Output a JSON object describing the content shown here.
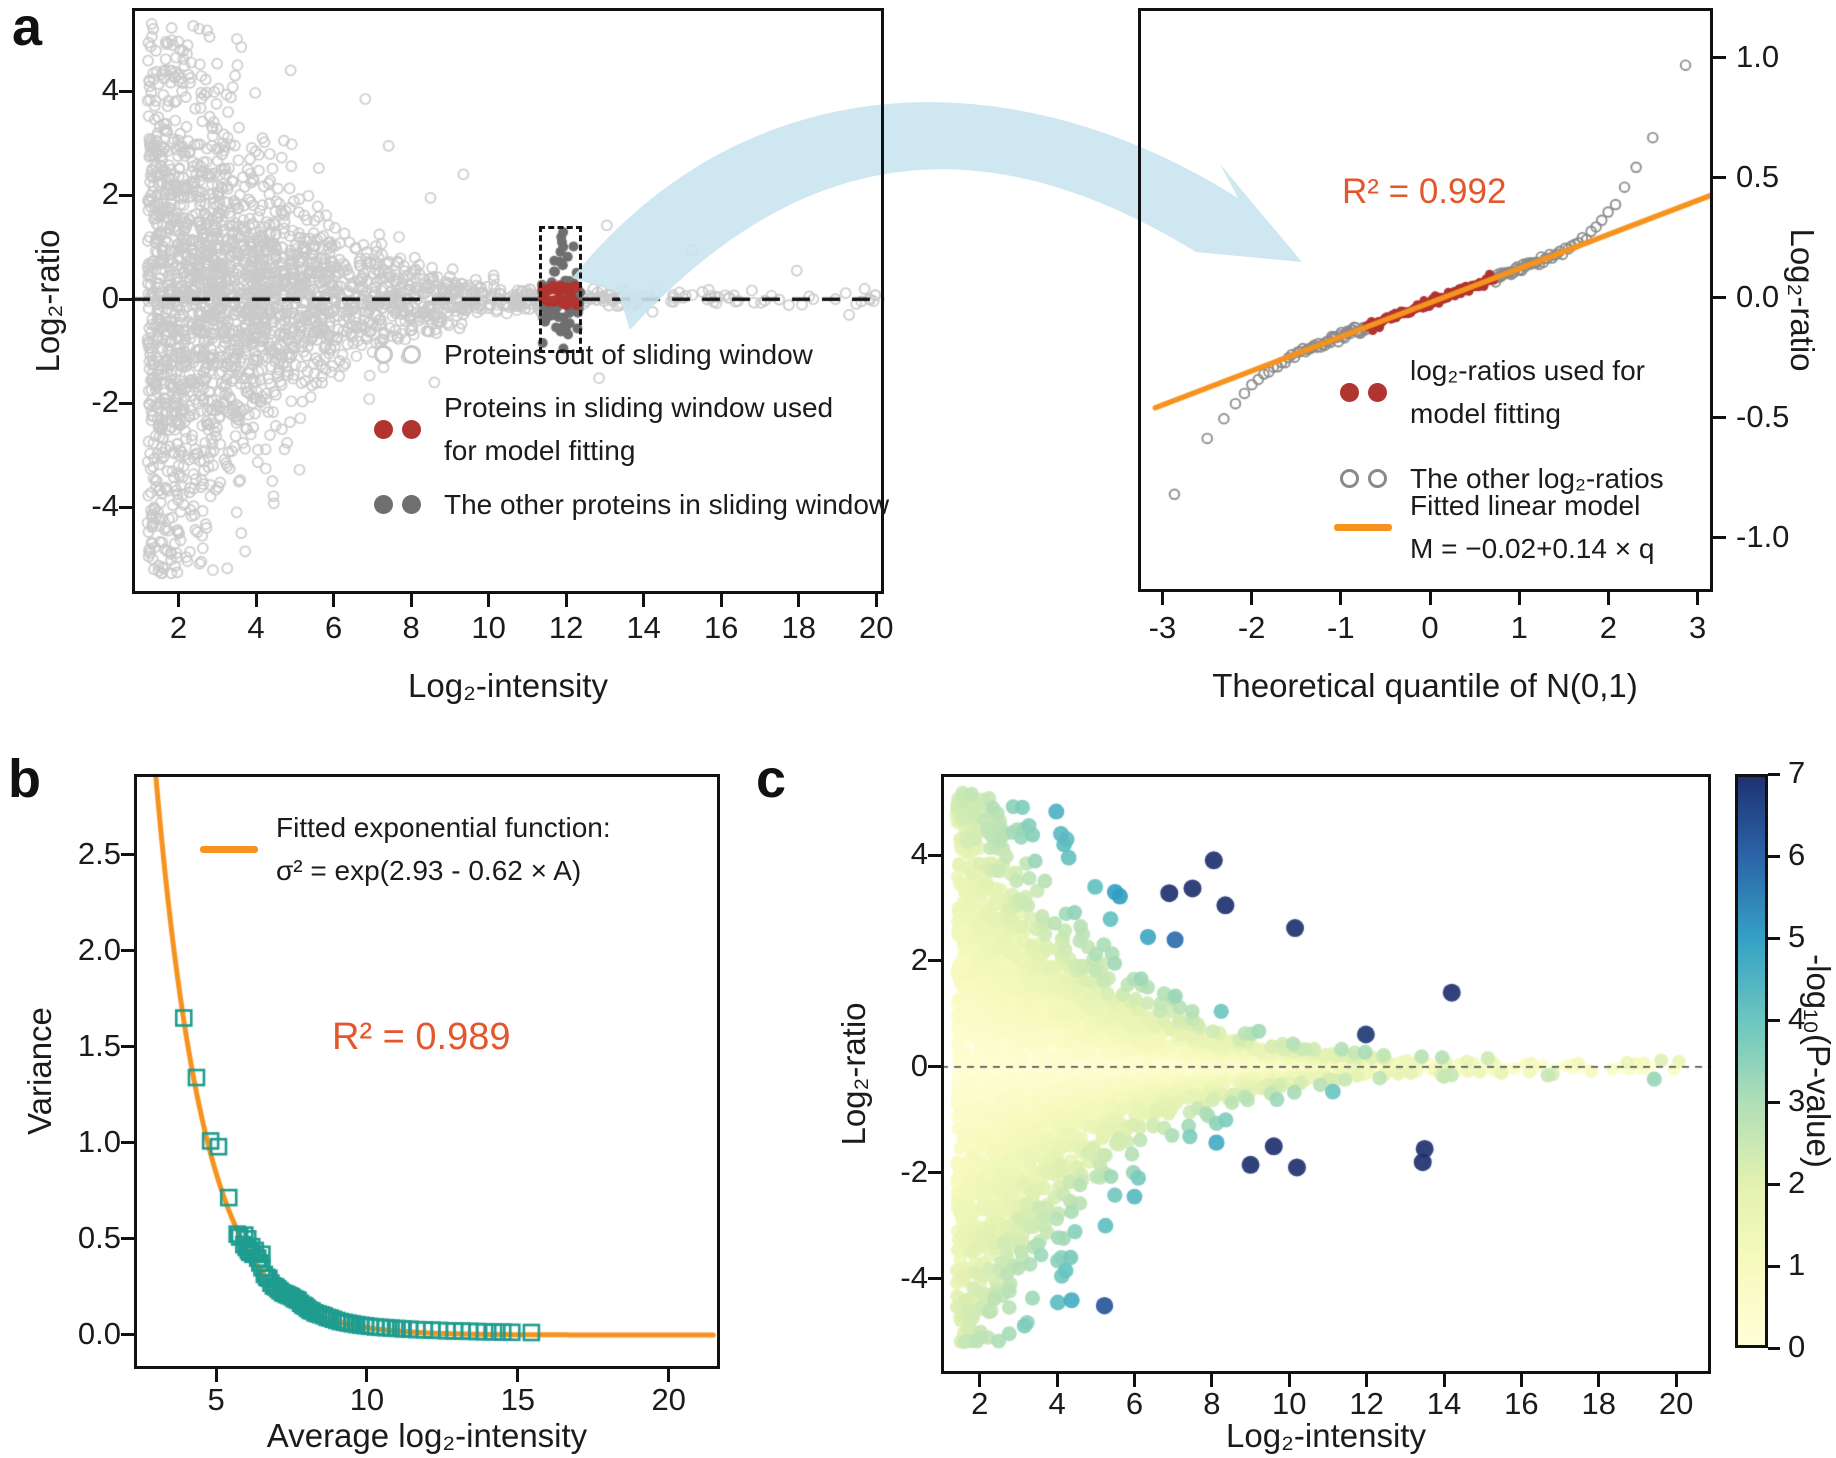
{
  "panel_labels": {
    "a": "a",
    "b": "b",
    "c": "c"
  },
  "colors": {
    "light_gray": "#c9c9c9",
    "qq_gray": "#8a8a8a",
    "window_gray": "#6f6f6f",
    "red": "#b0342f",
    "orange": "#f6921e",
    "r2_text": "#e2572b",
    "teal": "#1f9c8f",
    "arrow_blue": "#c9e4ef",
    "axis_black": "#111111",
    "zero_line_c": "#5a5a5a"
  },
  "chart_data": [
    {
      "id": "a_left",
      "type": "scatter",
      "panel": "a",
      "xlabel": "Log₂-intensity",
      "ylabel": "Log₂-ratio",
      "xlim": [
        0.8,
        20.2
      ],
      "ylim": [
        -5.67,
        5.6
      ],
      "xticks": [
        "2",
        "4",
        "6",
        "8",
        "10",
        "12",
        "14",
        "16",
        "18",
        "20"
      ],
      "xtick_values": [
        2,
        4,
        6,
        8,
        10,
        12,
        14,
        16,
        18,
        20
      ],
      "yticks": [
        "-4",
        "-2",
        "0",
        "2",
        "4"
      ],
      "ytick_values": [
        -4,
        -2,
        0,
        2,
        4
      ],
      "zero_line_y": 0,
      "grid": false,
      "sliding_window_box": {
        "x": [
          11.3,
          12.4
        ],
        "y": [
          -1.04,
          1.4
        ]
      },
      "noise_model": {
        "intercept": 2.93,
        "slope": -0.62
      },
      "series": [
        {
          "name": "out_of_window",
          "marker": "open-circle",
          "color": "#c9c9c9",
          "n": 2600,
          "seed": 101,
          "x_exp_mean": 3.3,
          "x_min": 1.2
        },
        {
          "name": "window_other",
          "marker": "circle",
          "color": "#6f6f6f",
          "n": 66,
          "seed": 202,
          "x_range": [
            11.34,
            12.37
          ],
          "y_sd": 0.42
        },
        {
          "name": "window_fit",
          "marker": "circle",
          "color": "#b0342f",
          "n": 22,
          "seed": 303,
          "x_range": [
            11.38,
            12.34
          ],
          "y_range": [
            -0.2,
            0.3
          ]
        }
      ],
      "feature_points": [
        [
          3.62,
          4.85
        ],
        [
          3.52,
          4.5
        ],
        [
          3.46,
          4.3
        ],
        [
          3.4,
          4.08
        ],
        [
          3.35,
          3.88
        ],
        [
          3.28,
          3.6
        ],
        [
          4.72,
          3.05
        ],
        [
          4.92,
          2.98
        ],
        [
          3.05,
          2.9
        ],
        [
          6.82,
          3.85
        ],
        [
          5.62,
          2.52
        ],
        [
          7.42,
          2.95
        ],
        [
          9.35,
          2.4
        ],
        [
          8.5,
          1.95
        ],
        [
          3.5,
          -4.1
        ],
        [
          3.62,
          -4.5
        ],
        [
          3.72,
          -4.85
        ],
        [
          4.42,
          -3.5
        ],
        [
          5.12,
          -3.28
        ],
        [
          4.05,
          -2.9
        ],
        [
          6.92,
          -1.92
        ],
        [
          8.6,
          -1.6
        ],
        [
          12.85,
          -1.52
        ],
        [
          13.05,
          1.42
        ],
        [
          15.25,
          0.95
        ],
        [
          17.95,
          0.55
        ],
        [
          19.3,
          -0.3
        ],
        [
          19.7,
          0.2
        ]
      ],
      "legend": [
        {
          "marker": "open-circle",
          "color": "#c9c9c9",
          "lines": [
            "Proteins out of sliding window"
          ]
        },
        {
          "marker": "circle",
          "color": "#b0342f",
          "lines": [
            "Proteins in sliding window used",
            "for model fitting"
          ]
        },
        {
          "marker": "circle",
          "color": "#6f6f6f",
          "lines": [
            "The other proteins in sliding window"
          ]
        }
      ]
    },
    {
      "id": "a_right",
      "type": "scatter",
      "panel": "a",
      "xlabel": "Theoretical quantile of N(0,1)",
      "ylabel": "Log₂-ratio",
      "xlim": [
        -3.274,
        3.173
      ],
      "ylim": [
        -1.225,
        1.208
      ],
      "xticks": [
        "-3",
        "-2",
        "-1",
        "0",
        "1",
        "2",
        "3"
      ],
      "xtick_values": [
        -3,
        -2,
        -1,
        0,
        1,
        2,
        3
      ],
      "yticks": [
        "1.0",
        "0.5",
        "0.0",
        "-0.5",
        "-1.0"
      ],
      "ytick_values": [
        1.0,
        0.5,
        0.0,
        -0.5,
        -1.0
      ],
      "grid": false,
      "annotation": {
        "text": "R² = 0.992",
        "color": "#e2572b"
      },
      "fitted_line": {
        "label": "M = −0.02+0.14 × q",
        "slope": 0.14,
        "intercept": -0.02,
        "color": "#f6921e",
        "q_start": -3.08,
        "q_end": 3.18
      },
      "qq": {
        "n": 240,
        "red_abs_q_max": 0.72,
        "tail_knee": 1.45,
        "pos_tail_coef": 0.3,
        "neg_tail_coef": 0.2,
        "seed": 404,
        "draw_slope": 0.142
      },
      "legend": [
        {
          "marker": "circle",
          "color": "#b0342f",
          "lines": [
            "log₂-ratios used for",
            "model fitting"
          ]
        },
        {
          "marker": "open-circle",
          "color": "#8a8a8a",
          "lines": [
            "The other log₂-ratios"
          ]
        },
        {
          "marker": "line",
          "color": "#f6921e",
          "lines": [
            "Fitted linear model",
            "M = −0.02+0.14 × q"
          ]
        }
      ]
    },
    {
      "id": "b",
      "type": "scatter",
      "panel": "b",
      "xlabel": "Average log₂-intensity",
      "ylabel": "Variance",
      "xlim": [
        2.28,
        21.7
      ],
      "ylim": [
        -0.177,
        2.92
      ],
      "xticks": [
        "5",
        "10",
        "15",
        "20"
      ],
      "xtick_values": [
        5,
        10,
        15,
        20
      ],
      "yticks": [
        "0.0",
        "0.5",
        "1.0",
        "1.5",
        "2.0",
        "2.5"
      ],
      "ytick_values": [
        0,
        0.5,
        1,
        1.5,
        2,
        2.5
      ],
      "grid": false,
      "annotation": {
        "text": "R² = 0.989",
        "color": "#e2572b"
      },
      "fitted_curve": {
        "formula_a": 2.93,
        "formula_b": -0.62,
        "color": "#f6921e",
        "x_start": 3.0,
        "x_end": 21.55
      },
      "legend": [
        {
          "marker": "line",
          "color": "#f6921e",
          "lines": [
            "Fitted exponential function:",
            "σ² = exp(2.93 - 0.62 × A)"
          ]
        }
      ],
      "marker": {
        "shape": "open-square",
        "color": "#1f9c8f",
        "size": 15
      },
      "points": [
        [
          3.93,
          1.65
        ],
        [
          4.35,
          1.34
        ],
        [
          4.82,
          1.01
        ],
        [
          5.08,
          0.98
        ],
        [
          5.42,
          0.715
        ],
        [
          5.7,
          0.525
        ],
        [
          5.78,
          0.51
        ],
        [
          5.92,
          0.47
        ],
        [
          5.95,
          0.52
        ],
        [
          6.0,
          0.455
        ],
        [
          6.05,
          0.5
        ],
        [
          6.07,
          0.44
        ],
        [
          6.12,
          0.43
        ],
        [
          6.18,
          0.46
        ],
        [
          6.22,
          0.42
        ],
        [
          6.3,
          0.44
        ],
        [
          6.38,
          0.4
        ],
        [
          6.45,
          0.375
        ],
        [
          6.52,
          0.42
        ],
        [
          6.52,
          0.35
        ],
        [
          6.6,
          0.315
        ],
        [
          6.68,
          0.3
        ],
        [
          6.75,
          0.295
        ],
        [
          6.82,
          0.27
        ],
        [
          6.9,
          0.255
        ],
        [
          6.98,
          0.25
        ],
        [
          7.05,
          0.24
        ],
        [
          7.12,
          0.23
        ],
        [
          7.2,
          0.22
        ],
        [
          7.28,
          0.215
        ],
        [
          7.35,
          0.21
        ],
        [
          7.42,
          0.205
        ],
        [
          7.5,
          0.2
        ],
        [
          7.58,
          0.19
        ],
        [
          7.65,
          0.185
        ],
        [
          7.72,
          0.18
        ],
        [
          7.8,
          0.165
        ],
        [
          7.88,
          0.155
        ],
        [
          7.95,
          0.15
        ],
        [
          8.02,
          0.14
        ],
        [
          8.1,
          0.13
        ],
        [
          8.18,
          0.125
        ],
        [
          8.28,
          0.115
        ],
        [
          8.38,
          0.11
        ],
        [
          8.48,
          0.105
        ],
        [
          8.58,
          0.1
        ],
        [
          8.68,
          0.092
        ],
        [
          8.78,
          0.088
        ],
        [
          8.88,
          0.082
        ],
        [
          9.0,
          0.076
        ],
        [
          9.12,
          0.07
        ],
        [
          9.25,
          0.066
        ],
        [
          9.38,
          0.062
        ],
        [
          9.52,
          0.058
        ],
        [
          9.66,
          0.054
        ],
        [
          9.8,
          0.051
        ],
        [
          9.95,
          0.048
        ],
        [
          10.1,
          0.045
        ],
        [
          10.28,
          0.042
        ],
        [
          10.45,
          0.04
        ],
        [
          10.62,
          0.038
        ],
        [
          10.8,
          0.036
        ],
        [
          11.0,
          0.034
        ],
        [
          11.2,
          0.032
        ],
        [
          11.42,
          0.03
        ],
        [
          11.65,
          0.028
        ],
        [
          11.9,
          0.027
        ],
        [
          12.15,
          0.025
        ],
        [
          12.4,
          0.024
        ],
        [
          12.65,
          0.022
        ],
        [
          12.9,
          0.021
        ],
        [
          13.15,
          0.02
        ],
        [
          13.4,
          0.019
        ],
        [
          13.65,
          0.018
        ],
        [
          13.9,
          0.017
        ],
        [
          14.2,
          0.016
        ],
        [
          14.5,
          0.015
        ],
        [
          14.8,
          0.014
        ],
        [
          15.45,
          0.013
        ]
      ]
    },
    {
      "id": "c",
      "type": "scatter",
      "panel": "c",
      "xlabel": "Log₂-intensity",
      "ylabel": "Log₂-ratio",
      "xlim": [
        1.0,
        20.9
      ],
      "ylim": [
        -5.8,
        5.53
      ],
      "xticks": [
        "2",
        "4",
        "6",
        "8",
        "10",
        "12",
        "14",
        "16",
        "18",
        "20"
      ],
      "xtick_values": [
        2,
        4,
        6,
        8,
        10,
        12,
        14,
        16,
        18,
        20
      ],
      "yticks": [
        "-4",
        "-2",
        "0",
        "2",
        "4"
      ],
      "ytick_values": [
        -4,
        -2,
        0,
        2,
        4
      ],
      "zero_line_y": 0,
      "grid": false,
      "noise_model": {
        "intercept": 2.93,
        "slope": -0.62
      },
      "points_spec": {
        "n": 3200,
        "seed": 707,
        "color_scale": 1.25,
        "outlier_prob": 0.012,
        "x_exp_mean": 3.3,
        "x_min": 1.4
      },
      "feature_points": [
        [
          3.98,
          4.82
        ],
        [
          4.1,
          4.4
        ],
        [
          4.18,
          4.2
        ],
        [
          4.3,
          3.95
        ],
        [
          5.5,
          3.3
        ],
        [
          5.62,
          3.22
        ],
        [
          8.05,
          3.9
        ],
        [
          7.5,
          3.37
        ],
        [
          6.9,
          3.28
        ],
        [
          8.35,
          3.05
        ],
        [
          10.15,
          2.62
        ],
        [
          6.35,
          2.45
        ],
        [
          7.05,
          2.4
        ],
        [
          14.2,
          1.4
        ],
        [
          4.02,
          -4.45
        ],
        [
          4.12,
          -3.95
        ],
        [
          4.35,
          -3.6
        ],
        [
          5.25,
          -3.0
        ],
        [
          6.0,
          -2.45
        ],
        [
          6.1,
          -2.1
        ],
        [
          9.0,
          -1.85
        ],
        [
          10.2,
          -1.9
        ],
        [
          13.45,
          -1.8
        ],
        [
          9.6,
          -1.5
        ],
        [
          13.5,
          -1.55
        ]
      ],
      "colorbar": {
        "label": "-log₁₀(P-value)",
        "ticks": [
          "0",
          "1",
          "2",
          "3",
          "4",
          "5",
          "6",
          "7"
        ],
        "tick_values": [
          0,
          1,
          2,
          3,
          4,
          5,
          6,
          7
        ],
        "range": [
          0,
          7
        ],
        "stops": [
          "#ffffd8",
          "#f6fabd",
          "#e2f1b2",
          "#afdeb7",
          "#6cc6c0",
          "#35a1c4",
          "#2b66a9",
          "#1f3270"
        ]
      }
    }
  ]
}
